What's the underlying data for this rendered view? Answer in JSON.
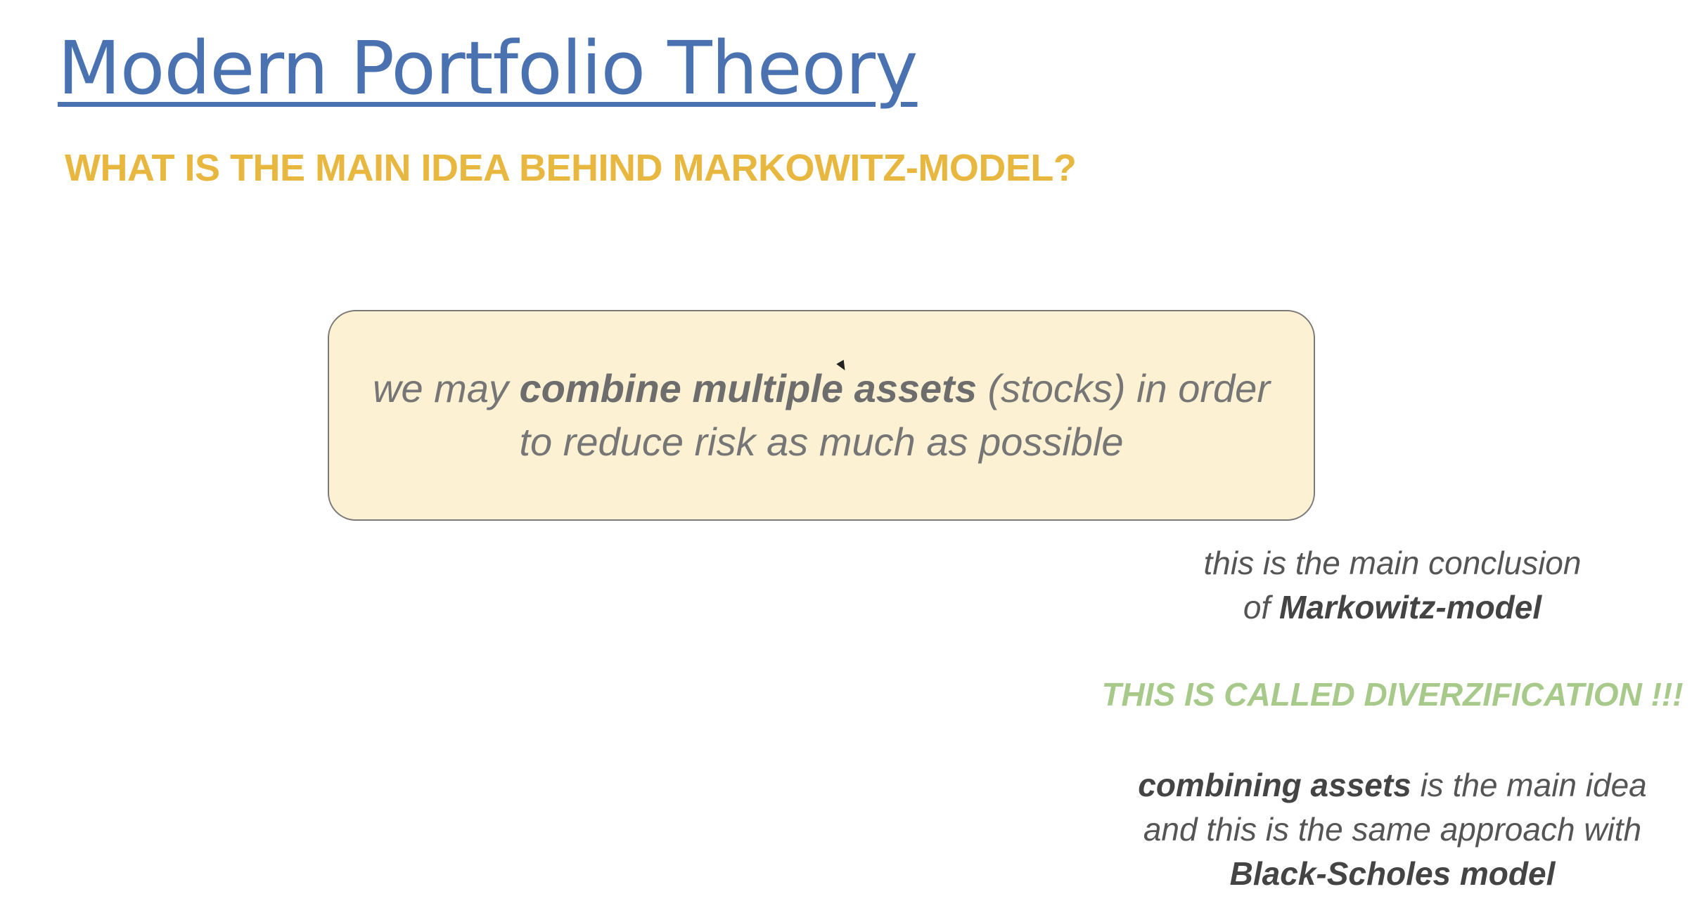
{
  "slide": {
    "title": "Modern Portfolio Theory",
    "subtitle": "WHAT IS THE MAIN IDEA BEHIND MARKOWITZ-MODEL?",
    "idea_box": {
      "line1_pre": "we may ",
      "line1_bold": "combine multiple assets",
      "line1_post": " (stocks) in order",
      "line2": "to reduce risk as much as possible"
    },
    "conclusion": {
      "line1": "this is the main conclusion",
      "line2_pre": "of ",
      "line2_bold": "Markowitz-model"
    },
    "diversification_note": "THIS IS CALLED DIVERZIFICATION !!!",
    "combining_note": {
      "line1_bold": "combining assets",
      "line1_post": " is the main idea",
      "line2": "and this is the same approach with",
      "line3_bold": "Black-Scholes model"
    }
  },
  "colors": {
    "title": "#4a72b0",
    "subtitle": "#e8b73f",
    "box_fill": "#fcf1d2",
    "box_border": "#7a7a7a",
    "diversification": "#a7c98a",
    "body_text": "#555555"
  },
  "icons": {
    "cursor": "mouse-pointer-icon"
  }
}
